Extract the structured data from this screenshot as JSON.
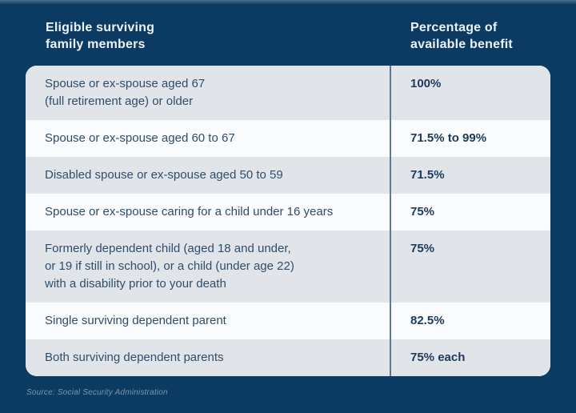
{
  "colors": {
    "background": "#0b3a62",
    "row_shaded": "#e1e5ea",
    "row_plain": "#fafbfc",
    "divider": "#5d7893",
    "header_text": "#eef3f8",
    "label_text": "#2f4d6a",
    "value_text": "#1c3a5c",
    "source_text": "#7e96ac"
  },
  "header": {
    "members_label": "Eligible surviving\nfamily members",
    "benefit_label": "Percentage of\navailable benefit"
  },
  "table": {
    "rows": [
      {
        "label": "Spouse or ex-spouse aged 67\n(full retirement age) or older",
        "value": "100%"
      },
      {
        "label": "Spouse or ex-spouse aged 60 to 67",
        "value": "71.5% to 99%"
      },
      {
        "label": "Disabled spouse or ex-spouse aged 50 to 59",
        "value": "71.5%"
      },
      {
        "label": "Spouse or ex-spouse caring for a child under 16 years",
        "value": "75%"
      },
      {
        "label": "Formerly dependent child (aged 18 and under,\nor 19 if still in school), or a child (under age 22)\nwith a disability prior to your death",
        "value": "75%"
      },
      {
        "label": "Single surviving dependent parent",
        "value": "82.5%"
      },
      {
        "label": "Both surviving dependent parents",
        "value": "75% each"
      }
    ]
  },
  "footer": {
    "source": "Source: Social Security Administration"
  },
  "chart_data": {
    "type": "table",
    "columns": [
      "Eligible surviving family members",
      "Percentage of available benefit"
    ],
    "rows": [
      [
        "Spouse or ex-spouse aged 67 (full retirement age) or older",
        "100%"
      ],
      [
        "Spouse or ex-spouse aged 60 to 67",
        "71.5% to 99%"
      ],
      [
        "Disabled spouse or ex-spouse aged 50 to 59",
        "71.5%"
      ],
      [
        "Spouse or ex-spouse caring for a child under 16 years",
        "75%"
      ],
      [
        "Formerly dependent child (aged 18 and under, or 19 if still in school), or a child (under age 22) with a disability prior to your death",
        "75%"
      ],
      [
        "Single surviving dependent parent",
        "82.5%"
      ],
      [
        "Both surviving dependent parents",
        "75% each"
      ]
    ],
    "layout": "two-column table, alternating shaded rows, vertical divider between columns",
    "source": "Source: Social Security Administration"
  }
}
